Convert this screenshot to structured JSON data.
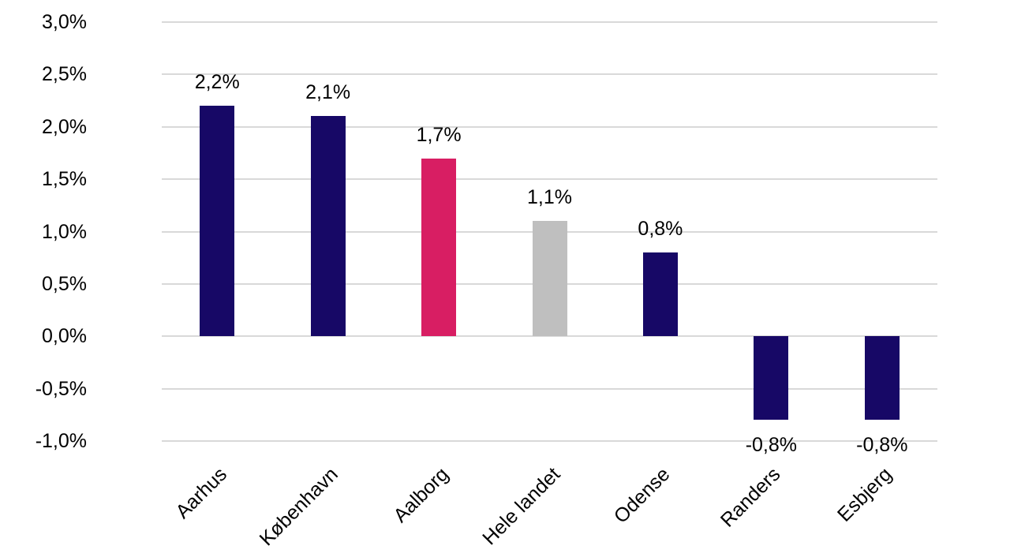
{
  "chart_data": {
    "type": "bar",
    "title": "",
    "xlabel": "",
    "ylabel": "",
    "categories": [
      "Aarhus",
      "København",
      "Aalborg",
      "Hele landet",
      "Odense",
      "Randers",
      "Esbjerg"
    ],
    "values": [
      2.2,
      2.1,
      1.7,
      1.1,
      0.8,
      -0.8,
      -0.8
    ],
    "value_labels": [
      "2,2%",
      "2,1%",
      "1,7%",
      "1,1%",
      "0,8%",
      "-0,8%",
      "-0,8%"
    ],
    "bar_colors": [
      "#170866",
      "#170866",
      "#d81e63",
      "#bfbfbf",
      "#170866",
      "#170866",
      "#170866"
    ],
    "ylim": [
      -1.0,
      3.0
    ],
    "yticks": [
      "3,0%",
      "2,5%",
      "2,0%",
      "1,5%",
      "1,0%",
      "0,5%",
      "0,0%",
      "-0,5%",
      "-1,0%"
    ],
    "grid": true,
    "legend": null
  }
}
